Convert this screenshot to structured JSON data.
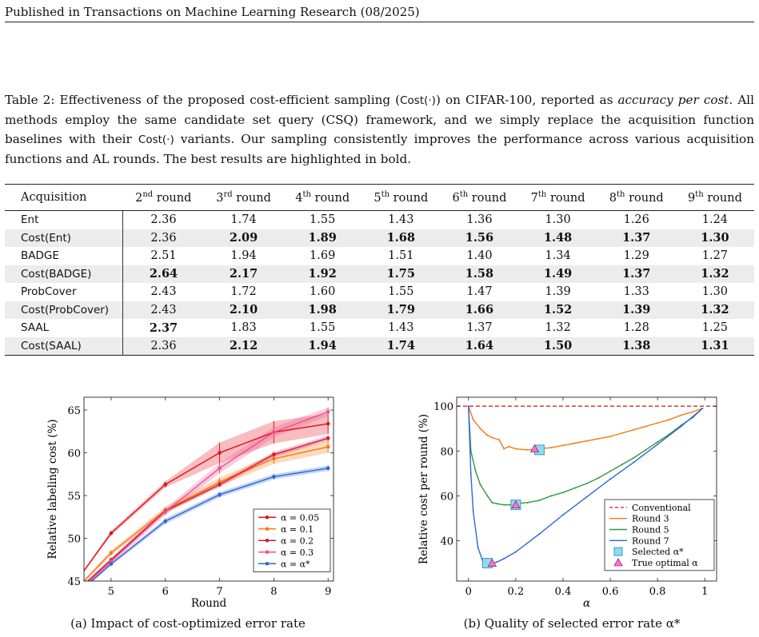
{
  "header": "Published in Transactions on Machine Learning Research (08/2025)",
  "caption": {
    "p1": "Table 2: Effectiveness of the proposed cost-efficient sampling (",
    "cost_sym": "Cost(·)",
    "p2": ") on CIFAR-100, reported as ",
    "emph": "accuracy per cost.",
    "p3": " All methods employ the same candidate set query (CSQ) framework, and we simply replace the acquisition function baselines with their ",
    "cost_sym2": "Cost(·)",
    "p4": " variants. Our sampling consistently improves the performance across various acquisition functions and AL rounds. The best results are highlighted in bold."
  },
  "table": {
    "acq_header": "Acquisition",
    "round_headers": [
      {
        "num": "2",
        "sup": "nd",
        "word": "round"
      },
      {
        "num": "3",
        "sup": "rd",
        "word": "round"
      },
      {
        "num": "4",
        "sup": "th",
        "word": "round"
      },
      {
        "num": "5",
        "sup": "th",
        "word": "round"
      },
      {
        "num": "6",
        "sup": "th",
        "word": "round"
      },
      {
        "num": "7",
        "sup": "th",
        "word": "round"
      },
      {
        "num": "8",
        "sup": "th",
        "word": "round"
      },
      {
        "num": "9",
        "sup": "th",
        "word": "round"
      }
    ],
    "rows": [
      {
        "name": "Ent",
        "values": [
          "2.36",
          "1.74",
          "1.55",
          "1.43",
          "1.36",
          "1.30",
          "1.26",
          "1.24"
        ],
        "bold": [
          false,
          false,
          false,
          false,
          false,
          false,
          false,
          false
        ]
      },
      {
        "name": "Cost(Ent)",
        "values": [
          "2.36",
          "2.09",
          "1.89",
          "1.68",
          "1.56",
          "1.48",
          "1.37",
          "1.30"
        ],
        "bold": [
          false,
          true,
          true,
          true,
          true,
          true,
          true,
          true
        ]
      },
      {
        "name": "BADGE",
        "values": [
          "2.51",
          "1.94",
          "1.69",
          "1.51",
          "1.40",
          "1.34",
          "1.29",
          "1.27"
        ],
        "bold": [
          false,
          false,
          false,
          false,
          false,
          false,
          false,
          false
        ]
      },
      {
        "name": "Cost(BADGE)",
        "values": [
          "2.64",
          "2.17",
          "1.92",
          "1.75",
          "1.58",
          "1.49",
          "1.37",
          "1.32"
        ],
        "bold": [
          true,
          true,
          true,
          true,
          true,
          true,
          true,
          true
        ]
      },
      {
        "name": "ProbCover",
        "values": [
          "2.43",
          "1.72",
          "1.60",
          "1.55",
          "1.47",
          "1.39",
          "1.33",
          "1.30"
        ],
        "bold": [
          false,
          false,
          false,
          false,
          false,
          false,
          false,
          false
        ]
      },
      {
        "name": "Cost(ProbCover)",
        "values": [
          "2.43",
          "2.10",
          "1.98",
          "1.79",
          "1.66",
          "1.52",
          "1.39",
          "1.32"
        ],
        "bold": [
          false,
          true,
          true,
          true,
          true,
          true,
          true,
          true
        ]
      },
      {
        "name": "SAAL",
        "values": [
          "2.37",
          "1.83",
          "1.55",
          "1.43",
          "1.37",
          "1.32",
          "1.28",
          "1.25"
        ],
        "bold": [
          true,
          false,
          false,
          false,
          false,
          false,
          false,
          false
        ]
      },
      {
        "name": "Cost(SAAL)",
        "values": [
          "2.36",
          "2.12",
          "1.94",
          "1.74",
          "1.64",
          "1.50",
          "1.38",
          "1.31"
        ],
        "bold": [
          false,
          true,
          true,
          true,
          true,
          true,
          true,
          true
        ]
      }
    ]
  },
  "chart_data": [
    {
      "type": "line",
      "xlabel": "Round",
      "ylabel": "Relative labeling cost (%)",
      "xlim": [
        4.5,
        9.1
      ],
      "ylim": [
        45,
        66.5
      ],
      "xticks": [
        5,
        6,
        7,
        8,
        9
      ],
      "yticks": [
        45,
        50,
        55,
        60,
        65
      ],
      "legend_position": "bottom-right",
      "series": [
        {
          "name": "α = 0.05",
          "color": "#e3121b",
          "x": [
            4.5,
            5,
            6,
            7,
            8,
            9
          ],
          "y": [
            46.2,
            50.6,
            56.3,
            60.0,
            62.4,
            63.4
          ],
          "band": [
            0.15,
            0.25,
            0.35,
            1.2,
            1.3,
            1.2
          ]
        },
        {
          "name": "α = 0.1",
          "color": "#f47a14",
          "x": [
            4.5,
            5,
            6,
            7,
            8,
            9
          ],
          "y": [
            45.0,
            48.3,
            53.3,
            56.6,
            59.3,
            60.7
          ],
          "band": [
            0.2,
            0.3,
            0.4,
            0.5,
            0.6,
            0.7
          ]
        },
        {
          "name": "α = 0.2",
          "color": "#d9173e",
          "x": [
            4.5,
            5,
            6,
            7,
            8,
            9
          ],
          "y": [
            44.6,
            47.5,
            53.2,
            56.3,
            59.8,
            61.7
          ],
          "band": [
            0.1,
            0.15,
            0.2,
            0.3,
            0.3,
            0.3
          ]
        },
        {
          "name": "α = 0.3",
          "color": "#f0508c",
          "x": [
            4.5,
            5,
            6,
            7,
            8,
            9
          ],
          "y": [
            44.4,
            47.3,
            53.1,
            58.2,
            62.4,
            64.8
          ],
          "band": [
            0.2,
            0.3,
            0.4,
            0.6,
            0.6,
            0.5
          ]
        },
        {
          "name": "α = α*",
          "color": "#2f66d6",
          "x": [
            4.5,
            5,
            6,
            7,
            8,
            9
          ],
          "y": [
            44.2,
            47.0,
            52.0,
            55.1,
            57.2,
            58.2
          ],
          "band": [
            0.15,
            0.2,
            0.3,
            0.3,
            0.3,
            0.3
          ]
        }
      ]
    },
    {
      "type": "line",
      "xlabel": "α",
      "ylabel": "Relative cost per round (%)",
      "xlim": [
        -0.05,
        1.05
      ],
      "ylim": [
        22,
        104
      ],
      "xticks": [
        0,
        0.2,
        0.4,
        0.6,
        0.8,
        1
      ],
      "xtick_labels": [
        "0",
        "0.2",
        "0.4",
        "0.6",
        "0.8",
        "1"
      ],
      "yticks": [
        40,
        60,
        80,
        100
      ],
      "legend_position": "bottom-right",
      "series": [
        {
          "name": "Conventional",
          "color": "#d42a2a",
          "dashed": true,
          "x": [
            -0.05,
            1.05
          ],
          "y": [
            100,
            100
          ]
        },
        {
          "name": "Round 3",
          "color": "#f47a14",
          "x": [
            0,
            0.02,
            0.05,
            0.08,
            0.1,
            0.13,
            0.15,
            0.17,
            0.2,
            0.25,
            0.3,
            0.35,
            0.4,
            0.45,
            0.5,
            0.55,
            0.6,
            0.65,
            0.7,
            0.75,
            0.8,
            0.85,
            0.9,
            0.95,
            0.99
          ],
          "y": [
            100,
            94,
            90,
            87,
            86,
            85,
            81,
            82,
            81,
            80.5,
            81,
            81.5,
            82.5,
            83.5,
            84.5,
            85.5,
            86.5,
            88,
            89.5,
            91,
            92.5,
            94,
            96,
            97.5,
            99
          ]
        },
        {
          "name": "Round 5",
          "color": "#2f9a3a",
          "x": [
            0,
            0.01,
            0.03,
            0.05,
            0.08,
            0.1,
            0.12,
            0.15,
            0.18,
            0.2,
            0.25,
            0.3,
            0.35,
            0.4,
            0.45,
            0.5,
            0.55,
            0.6,
            0.65,
            0.7,
            0.75,
            0.8,
            0.85,
            0.9,
            0.95,
            0.99
          ],
          "y": [
            100,
            80,
            71,
            65,
            60,
            57,
            56.5,
            56,
            56,
            56.5,
            57,
            58,
            60,
            61.5,
            63.5,
            65.5,
            68,
            71,
            74,
            77,
            80.5,
            84,
            87.5,
            91.5,
            95,
            99
          ]
        },
        {
          "name": "Round 7",
          "color": "#2f66d6",
          "x": [
            0,
            0.01,
            0.02,
            0.04,
            0.06,
            0.08,
            0.1,
            0.12,
            0.15,
            0.2,
            0.3,
            0.4,
            0.5,
            0.6,
            0.7,
            0.8,
            0.9,
            0.99
          ],
          "y": [
            100,
            70,
            53,
            37,
            31,
            30,
            30,
            30.5,
            32,
            35,
            43,
            51.5,
            59.5,
            67.5,
            75,
            83,
            91,
            99
          ]
        }
      ],
      "selected_alpha_markers": {
        "label": "Selected α*",
        "points": [
          {
            "x": 0.3,
            "y": 80.5
          },
          {
            "x": 0.2,
            "y": 56
          },
          {
            "x": 0.08,
            "y": 30
          }
        ]
      },
      "true_optimal_markers": {
        "label": "True optimal α",
        "points": [
          {
            "x": 0.28,
            "y": 81
          },
          {
            "x": 0.2,
            "y": 56
          },
          {
            "x": 0.1,
            "y": 30
          }
        ]
      }
    }
  ],
  "figures": {
    "caption_a": "(a) Impact of cost-optimized error rate",
    "caption_b": "(b) Quality of selected error rate α*"
  }
}
